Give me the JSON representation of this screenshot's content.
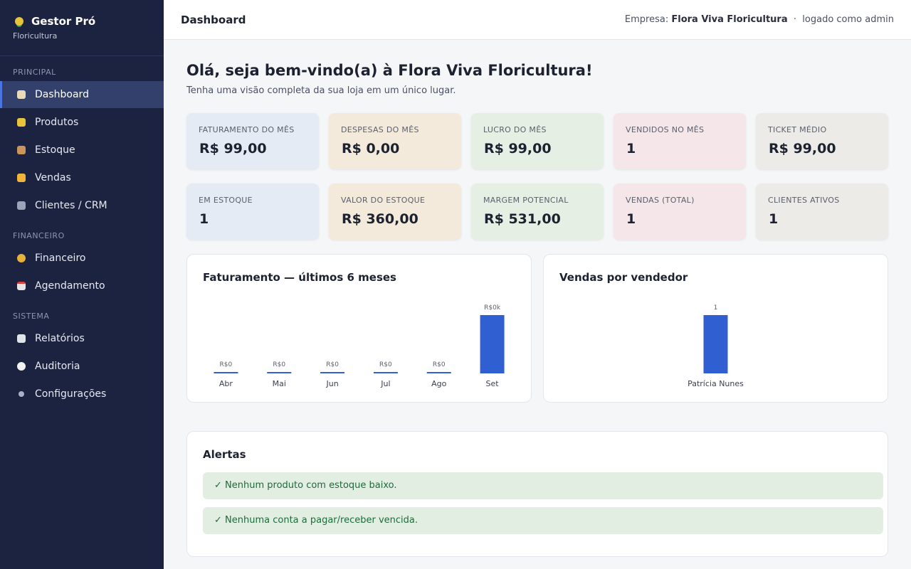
{
  "sidebar": {
    "brand": "Gestor Pró",
    "subtitle": "Floricultura",
    "sections": [
      {
        "title": "PRINCIPAL",
        "items": [
          "Dashboard",
          "Produtos",
          "Estoque",
          "Vendas",
          "Clientes / CRM"
        ]
      },
      {
        "title": "FINANCEIRO",
        "items": [
          "Financeiro",
          "Agendamento"
        ]
      },
      {
        "title": "SISTEMA",
        "items": [
          "Relatórios",
          "Auditoria",
          "Configurações"
        ]
      }
    ]
  },
  "header": {
    "title": "Dashboard",
    "company_label": "Empresa:",
    "company": "Flora Viva Floricultura",
    "separator": "·",
    "user": "logado como admin"
  },
  "welcome": {
    "title": "Olá, seja bem-vindo(a) à Flora Viva Floricultura!",
    "subtitle": "Tenha uma visão completa da sua loja em um único lugar."
  },
  "kpis": [
    {
      "label": "FATURAMENTO DO MÊS",
      "value": "R$ 99,00"
    },
    {
      "label": "DESPESAS DO MÊS",
      "value": "R$ 0,00"
    },
    {
      "label": "LUCRO DO MÊS",
      "value": "R$ 99,00"
    },
    {
      "label": "VENDIDOS NO MÊS",
      "value": "1"
    },
    {
      "label": "TICKET MÉDIO",
      "value": "R$ 99,00"
    },
    {
      "label": "EM ESTOQUE",
      "value": "1"
    },
    {
      "label": "VALOR DO ESTOQUE",
      "value": "R$ 360,00"
    },
    {
      "label": "MARGEM POTENCIAL",
      "value": "R$ 531,00"
    },
    {
      "label": "VENDAS (TOTAL)",
      "value": "1"
    },
    {
      "label": "CLIENTES ATIVOS",
      "value": "1"
    }
  ],
  "charts": [
    {
      "type": "bar",
      "title": "Faturamento — últimos 6 meses",
      "categories": [
        "Abr",
        "Mai",
        "Jun",
        "Jul",
        "Ago",
        "Set"
      ],
      "values": [
        0,
        0,
        0,
        0,
        0,
        99
      ],
      "value_labels": [
        "R$0",
        "R$0",
        "R$0",
        "R$0",
        "R$0",
        "R$0k"
      ],
      "color": "#2f5fd0"
    },
    {
      "type": "bar",
      "title": "Vendas por vendedor",
      "categories": [
        "Patrícia Nunes"
      ],
      "values": [
        1
      ],
      "color": "#2f5fd0"
    }
  ],
  "alerts": {
    "title": "Alertas",
    "items": [
      "✓ Nenhum produto com estoque baixo.",
      "✓ Nenhuma conta a pagar/receber vencida."
    ]
  }
}
